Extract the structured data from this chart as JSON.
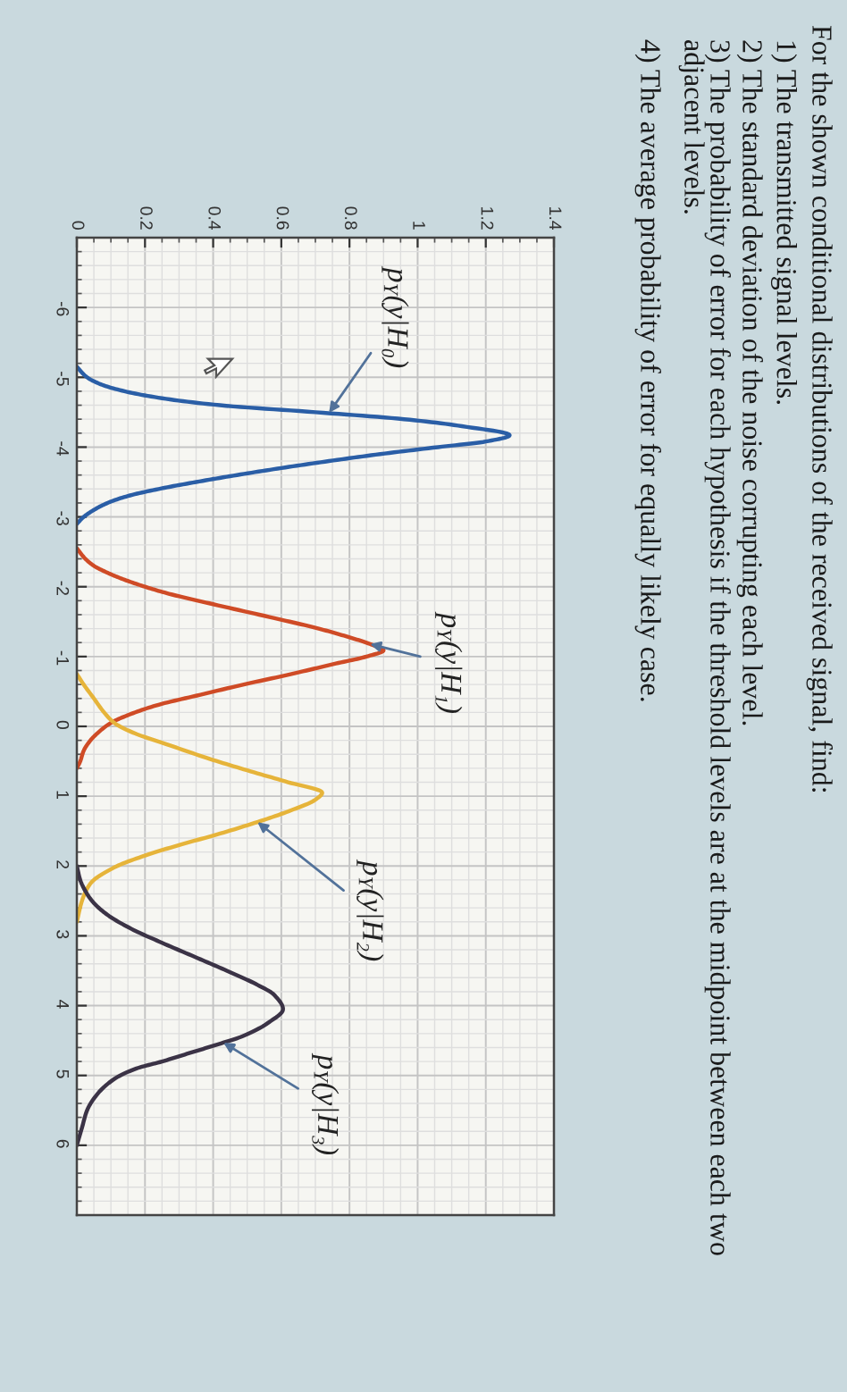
{
  "chart_data": {
    "type": "line",
    "title": "For the shown conditional distributions of the received signal, find:",
    "annotations": [
      "1) The transmitted signal levels.",
      "2) The standard deviation of the noise corrupting each level.",
      "3) The probability of error for each hypothesis if the threshold levels are at the midpoint between each two\nadjacent levels.",
      "4) The average probability of error for equally likely case.",
      {
        "text": "p$_{Y}$(y|H₀)",
        "x": 0.74,
        "y": -4.49
      },
      {
        "text": "p$_{Y}$(y|H₁)",
        "x": 0.86,
        "y": -1.18
      },
      {
        "text": "p$_{Y}$(y|H₂)",
        "x": 0.53,
        "y": 1.37
      },
      {
        "text": "p$_{Y}$(y|H₃)",
        "x": 0.43,
        "y": 4.53
      }
    ],
    "xlim": [
      0,
      1.4
    ],
    "xticks": [
      0,
      0.2,
      0.4,
      0.6,
      0.8,
      1,
      1.2,
      1.4
    ],
    "ylim": [
      7,
      -7
    ],
    "yticks": [
      -6,
      -5,
      -4,
      -3,
      -2,
      -1,
      0,
      1,
      2,
      3,
      4,
      5,
      6
    ],
    "grid": true,
    "series": [
      {
        "color": "#2a5ea6",
        "x": [
          0,
          0.03,
          0.07,
          0.14,
          0.25,
          0.42,
          0.7,
          0.96,
          1.13,
          1.27,
          1.2,
          1.06,
          0.89,
          0.74,
          0.6,
          0.47,
          0.35,
          0.24,
          0.15,
          0.09,
          0.05,
          0.02,
          0
        ],
        "values": [
          -5.15,
          -5.0,
          -4.9,
          -4.8,
          -4.7,
          -4.6,
          -4.5,
          -4.4,
          -4.3,
          -4.17,
          -4.08,
          -4.0,
          -3.9,
          -3.8,
          -3.7,
          -3.6,
          -3.5,
          -3.4,
          -3.3,
          -3.2,
          -3.1,
          -3.0,
          -2.9
        ]
      },
      {
        "color": "#cf4b26",
        "x": [
          0,
          0.025,
          0.05,
          0.09,
          0.14,
          0.2,
          0.27,
          0.4,
          0.58,
          0.71,
          0.79,
          0.86,
          0.9,
          0.85,
          0.76,
          0.63,
          0.49,
          0.36,
          0.24,
          0.16,
          0.1,
          0.06,
          0.04,
          0.02,
          0.01,
          0
        ],
        "values": [
          -2.55,
          -2.4,
          -2.3,
          -2.2,
          -2.1,
          -2.0,
          -1.9,
          -1.75,
          -1.55,
          -1.4,
          -1.29,
          -1.18,
          -1.09,
          -1.0,
          -0.9,
          -0.75,
          -0.6,
          -0.45,
          -0.31,
          -0.18,
          -0.05,
          0.1,
          0.2,
          0.35,
          0.5,
          0.6
        ]
      },
      {
        "color": "#e6b43a",
        "x": [
          0,
          0.02,
          0.05,
          0.08,
          0.11,
          0.17,
          0.26,
          0.38,
          0.5,
          0.62,
          0.72,
          0.7,
          0.63,
          0.53,
          0.41,
          0.3,
          0.2,
          0.11,
          0.04,
          0.015,
          0
        ],
        "values": [
          -0.75,
          -0.6,
          -0.4,
          -0.2,
          -0.05,
          0.1,
          0.25,
          0.45,
          0.63,
          0.8,
          0.95,
          1.05,
          1.2,
          1.37,
          1.55,
          1.7,
          1.85,
          2.02,
          2.25,
          2.5,
          2.8
        ]
      },
      {
        "color": "#3b3346",
        "x": [
          0,
          0.01,
          0.03,
          0.05,
          0.09,
          0.16,
          0.25,
          0.355,
          0.44,
          0.525,
          0.58,
          0.605,
          0.56,
          0.485,
          0.41,
          0.33,
          0.25,
          0.175,
          0.11,
          0.058,
          0.03,
          0.015,
          0
        ],
        "values": [
          2.0,
          2.2,
          2.4,
          2.53,
          2.7,
          2.9,
          3.1,
          3.32,
          3.5,
          3.69,
          3.85,
          4.05,
          4.25,
          4.44,
          4.56,
          4.68,
          4.8,
          4.9,
          5.05,
          5.28,
          5.5,
          5.75,
          6.0
        ]
      }
    ]
  }
}
